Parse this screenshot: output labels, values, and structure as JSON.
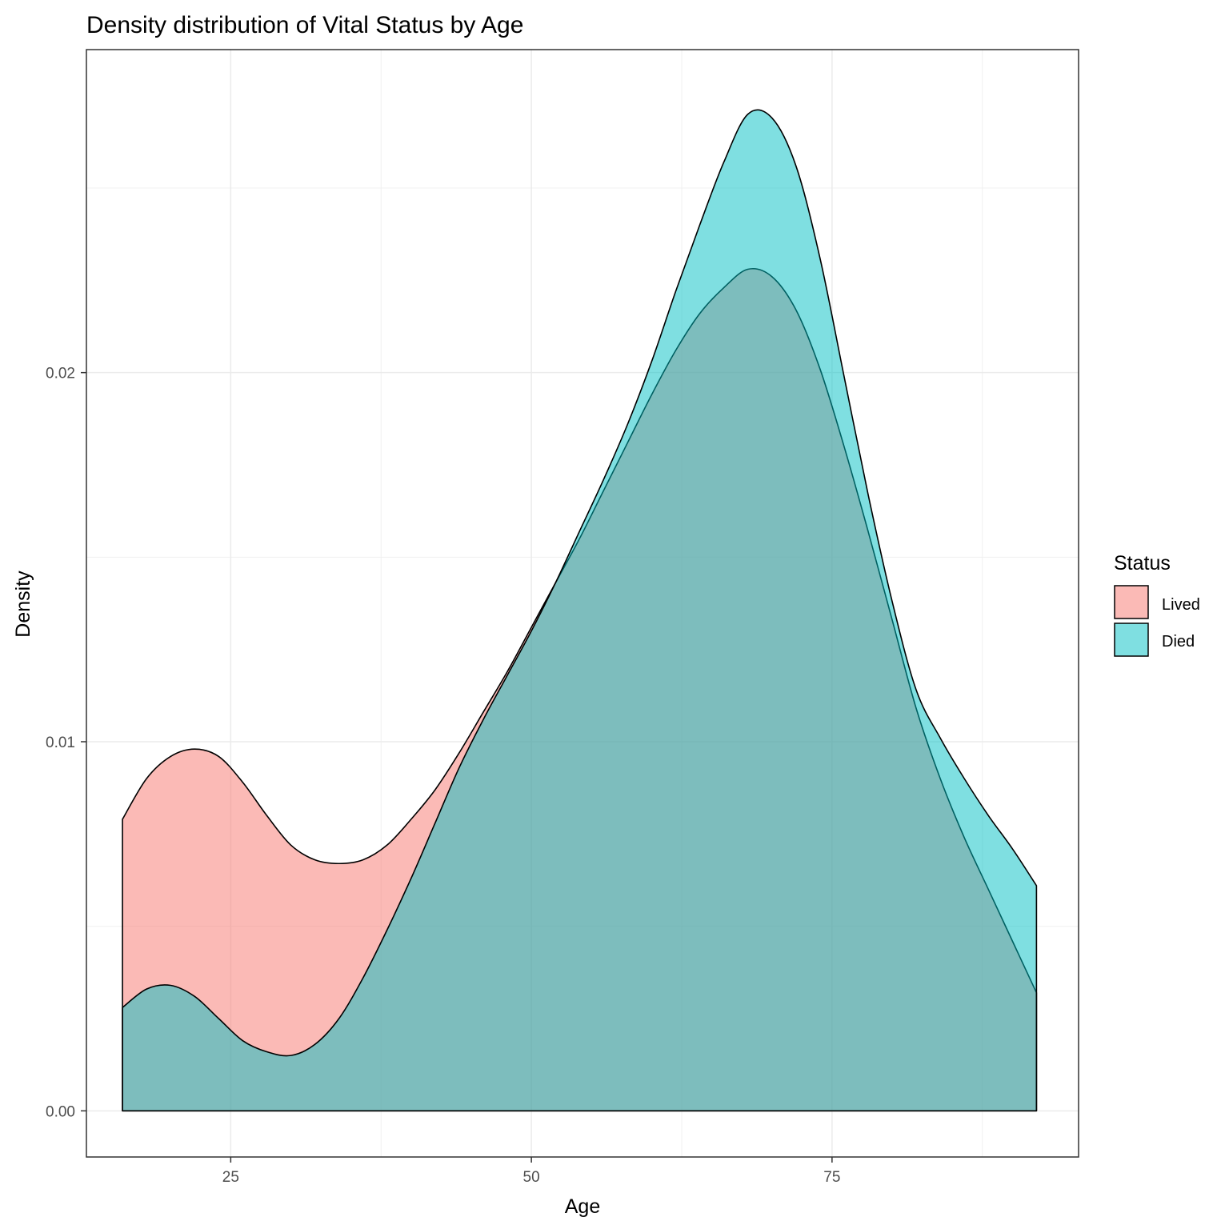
{
  "chart_data": {
    "type": "area",
    "title": "Density distribution of Vital Status by Age",
    "xlabel": "Age",
    "ylabel": "Density",
    "xlim": [
      13.0,
      95.5
    ],
    "ylim": [
      -0.00125,
      0.02875
    ],
    "x_ticks": [
      25,
      50,
      75
    ],
    "x_tick_labels": [
      "25",
      "50",
      "75"
    ],
    "y_ticks": [
      0.0,
      0.01,
      0.02
    ],
    "y_tick_labels": [
      "0.00",
      "0.01",
      "0.02"
    ],
    "grid": true,
    "legend": {
      "title": "Status",
      "position": "right"
    },
    "series": [
      {
        "name": "Lived",
        "color": "#F8766D",
        "opacity": 0.5,
        "x": [
          16,
          18,
          20,
          22,
          24,
          26,
          28,
          30,
          32,
          34,
          36,
          38,
          40,
          42,
          44,
          46,
          48,
          50,
          52,
          54,
          56,
          58,
          60,
          62,
          64,
          66,
          68,
          70,
          72,
          74,
          76,
          78,
          80,
          82,
          84,
          86,
          88,
          90,
          92
        ],
        "y": [
          0.0079,
          0.009,
          0.0096,
          0.0098,
          0.0096,
          0.0089,
          0.008,
          0.0072,
          0.0068,
          0.0067,
          0.0068,
          0.0072,
          0.0079,
          0.0087,
          0.0097,
          0.0108,
          0.0119,
          0.0131,
          0.0143,
          0.0155,
          0.0168,
          0.0181,
          0.0194,
          0.0206,
          0.0216,
          0.0223,
          0.0228,
          0.0226,
          0.0217,
          0.0201,
          0.018,
          0.0157,
          0.0133,
          0.0109,
          0.009,
          0.0074,
          0.006,
          0.0046,
          0.0032
        ]
      },
      {
        "name": "Died",
        "color": "#00BFC4",
        "opacity": 0.5,
        "x": [
          16,
          18,
          20,
          22,
          24,
          26,
          28,
          30,
          32,
          34,
          36,
          38,
          40,
          42,
          44,
          46,
          48,
          50,
          52,
          54,
          56,
          58,
          60,
          62,
          64,
          66,
          68,
          70,
          72,
          74,
          76,
          78,
          80,
          82,
          84,
          86,
          88,
          90,
          92
        ],
        "y": [
          0.0028,
          0.0033,
          0.0034,
          0.0031,
          0.0025,
          0.0019,
          0.0016,
          0.0015,
          0.0018,
          0.0025,
          0.0036,
          0.0049,
          0.0063,
          0.0078,
          0.0093,
          0.0106,
          0.0118,
          0.013,
          0.0143,
          0.0157,
          0.0171,
          0.0186,
          0.0203,
          0.0222,
          0.024,
          0.0257,
          0.027,
          0.0269,
          0.0256,
          0.0231,
          0.0199,
          0.0167,
          0.0138,
          0.0114,
          0.0101,
          0.009,
          0.008,
          0.0071,
          0.0061
        ]
      }
    ]
  }
}
